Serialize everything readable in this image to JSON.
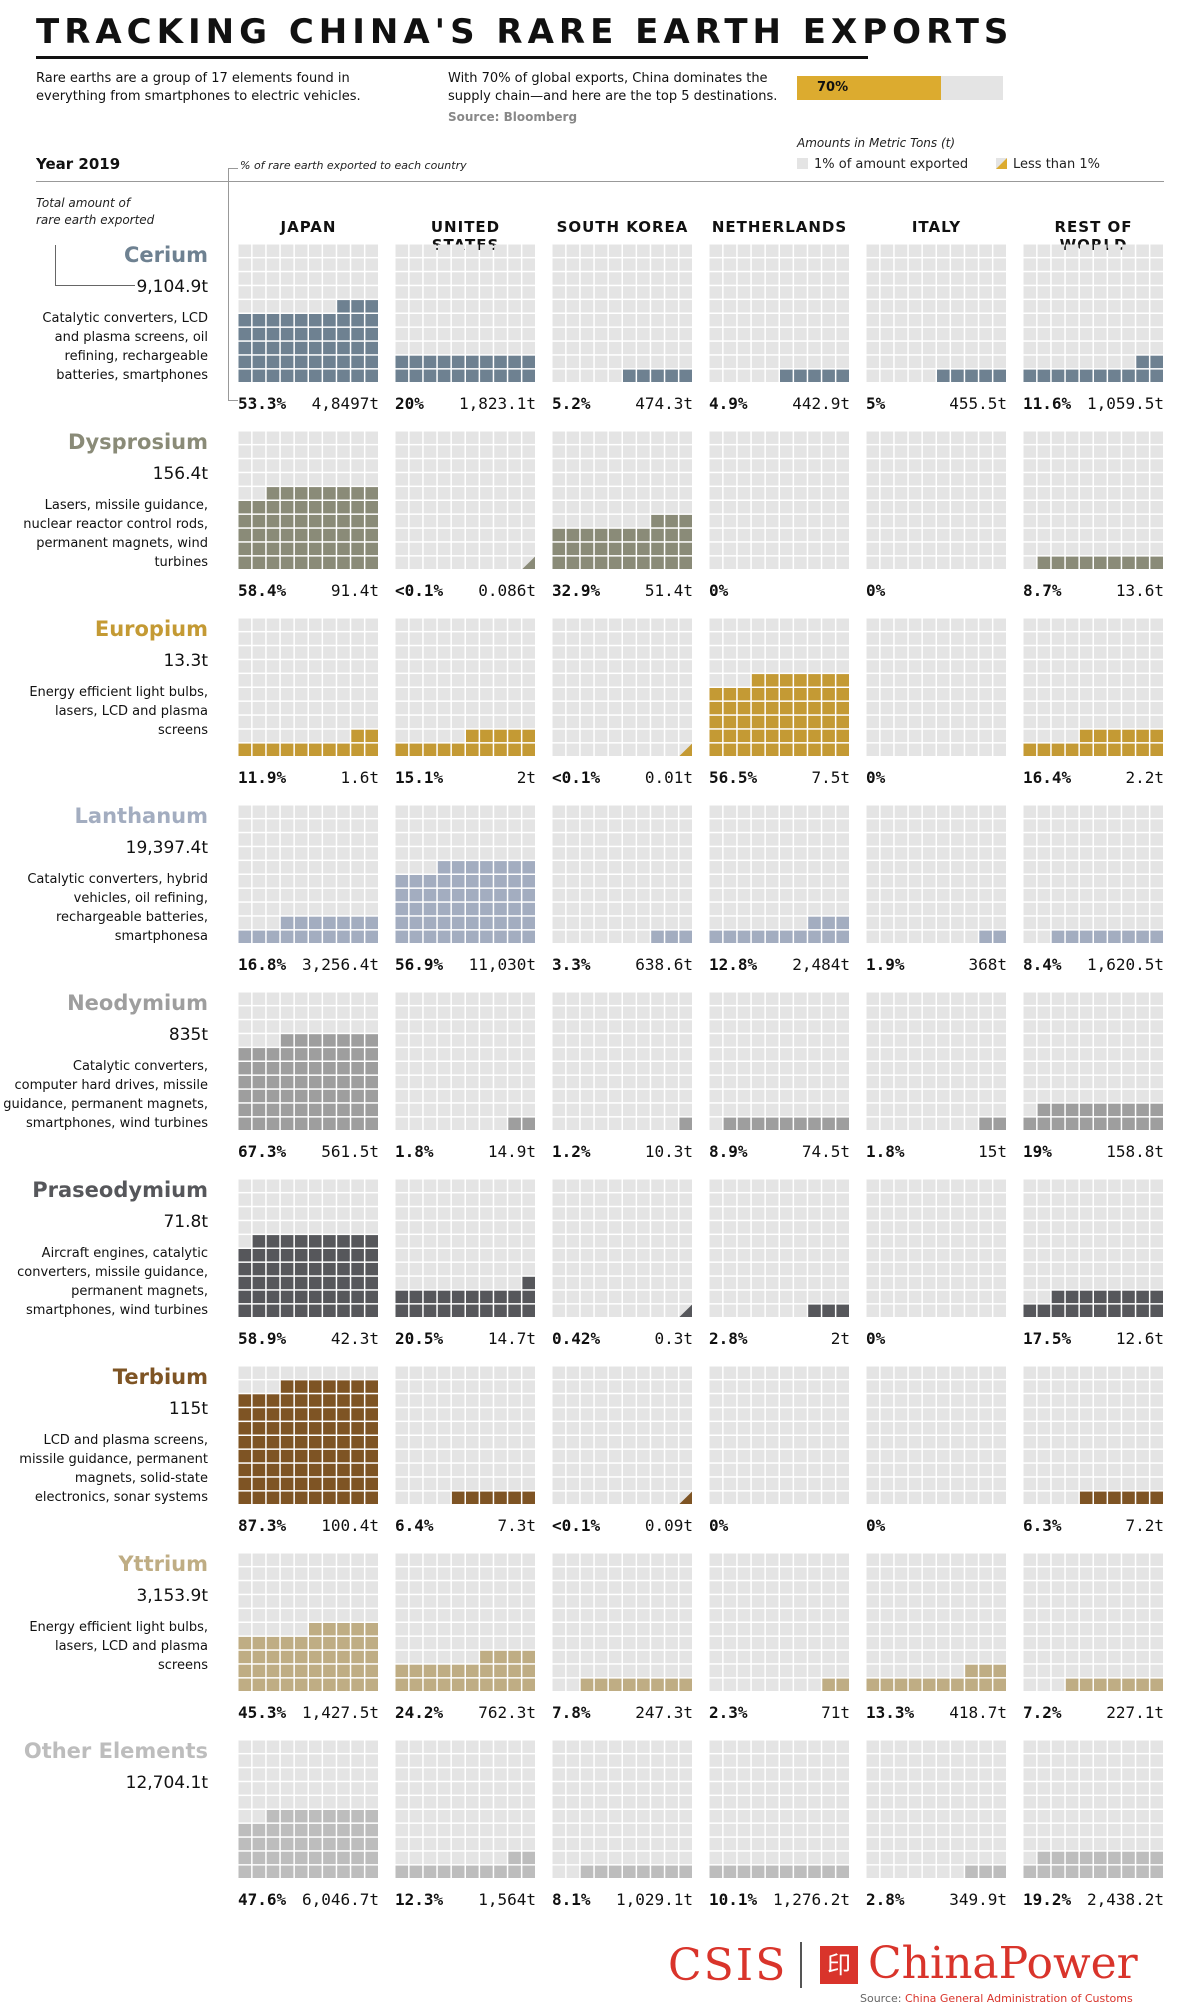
{
  "title": "TRACKING CHINA'S RARE EARTH EXPORTS",
  "intro_left": "Rare earths are a group of 17 elements found in everything from smartphones to electric vehicles.",
  "intro_right": "With 70% of global exports, China dominates the supply chain—and here are the top 5 destinations.",
  "source_top": "Source: Bloomberg",
  "china_share": {
    "label": "70%",
    "fraction": 0.7
  },
  "legend": {
    "title": "Amounts in Metric Tons (t)",
    "cell_label": "1% of amount exported",
    "less_label": "Less than 1%"
  },
  "year_label": "Year 2019",
  "pct_note": "% of rare earth exported to each country",
  "total_note": "Total amount of rare earth exported",
  "colors": {
    "empty": "#e4e4e4",
    "legend_cell": "#e4e4e4",
    "legend_less": "#dcab2f"
  },
  "footer": {
    "logo_left": "CSIS",
    "logo_right": "ChinaPower",
    "logo_mark": "印",
    "source_prefix": "Source: ",
    "source_name": "China General Administration of Customs"
  },
  "chart_data": {
    "type": "waffle",
    "units_per_cell": "1% of element's exports",
    "grid": {
      "rows": 10,
      "cols": 10
    },
    "categories": [
      "JAPAN",
      "UNITED STATES",
      "SOUTH KOREA",
      "NETHERLANDS",
      "ITALY",
      "REST OF WORLD"
    ],
    "series": [
      {
        "name": "Cerium",
        "total": "9,104.9t",
        "color": "#6e8191",
        "uses": [
          "Catalytic converters, LCD",
          "and plasma screens, oil",
          "refining, rechargeable",
          "batteries, smartphones"
        ],
        "values": [
          53.3,
          20,
          5.2,
          4.9,
          5,
          11.6
        ],
        "pct_labels": [
          "53.3%",
          "20%",
          "5.2%",
          "4.9%",
          "5%",
          "11.6%"
        ],
        "ton_labels": [
          "4,8497t",
          "1,823.1t",
          "474.3t",
          "442.9t",
          "455.5t",
          "1,059.5t"
        ]
      },
      {
        "name": "Dysprosium",
        "total": "156.4t",
        "color": "#8a8b78",
        "uses": [
          "Lasers, missile guidance,",
          "nuclear reactor control rods,",
          "permanent magnets, wind",
          "turbines"
        ],
        "values": [
          58.4,
          0.05,
          32.9,
          0,
          0,
          8.7
        ],
        "pct_labels": [
          "58.4%",
          "<0.1%",
          "32.9%",
          "0%",
          "0%",
          "8.7%"
        ],
        "ton_labels": [
          "91.4t",
          "0.086t",
          "51.4t",
          "",
          "",
          "13.6t"
        ]
      },
      {
        "name": "Europium",
        "total": "13.3t",
        "color": "#c49a34",
        "uses": [
          "Energy efficient light bulbs,",
          "lasers, LCD and plasma",
          "screens"
        ],
        "values": [
          11.9,
          15.1,
          0.05,
          56.5,
          0,
          16.4
        ],
        "pct_labels": [
          "11.9%",
          "15.1%",
          "<0.1%",
          "56.5%",
          "0%",
          "16.4%"
        ],
        "ton_labels": [
          "1.6t",
          "2t",
          "0.01t",
          "7.5t",
          "",
          "2.2t"
        ]
      },
      {
        "name": "Lanthanum",
        "total": "19,397.4t",
        "color": "#a3adc0",
        "uses": [
          "Catalytic converters, hybrid",
          "vehicles, oil refining,",
          "rechargeable batteries,",
          "smartphonesa"
        ],
        "values": [
          16.8,
          56.9,
          3.3,
          12.8,
          1.9,
          8.4
        ],
        "pct_labels": [
          "16.8%",
          "56.9%",
          "3.3%",
          "12.8%",
          "1.9%",
          "8.4%"
        ],
        "ton_labels": [
          "3,256.4t",
          "11,030t",
          "638.6t",
          "2,484t",
          "368t",
          "1,620.5t"
        ]
      },
      {
        "name": "Neodymium",
        "total": "835t",
        "color": "#9e9e9e",
        "uses": [
          "Catalytic converters,",
          "computer hard drives, missile",
          "guidance, permanent magnets,",
          "smartphones, wind turbines"
        ],
        "values": [
          67.3,
          1.8,
          1.2,
          8.9,
          1.8,
          19
        ],
        "pct_labels": [
          "67.3%",
          "1.8%",
          "1.2%",
          "8.9%",
          "1.8%",
          "19%"
        ],
        "ton_labels": [
          "561.5t",
          "14.9t",
          "10.3t",
          "74.5t",
          "15t",
          "158.8t"
        ]
      },
      {
        "name": "Praseodymium",
        "total": "71.8t",
        "color": "#56575b",
        "uses": [
          "Aircraft engines, catalytic",
          "converters, missile guidance,",
          "permanent magnets,",
          "smartphones, wind turbines"
        ],
        "values": [
          58.9,
          20.5,
          0.42,
          2.8,
          0,
          17.5
        ],
        "pct_labels": [
          "58.9%",
          "20.5%",
          "0.42%",
          "2.8%",
          "0%",
          "17.5%"
        ],
        "ton_labels": [
          "42.3t",
          "14.7t",
          "0.3t",
          "2t",
          "",
          "12.6t"
        ]
      },
      {
        "name": "Terbium",
        "total": "115t",
        "color": "#7e5424",
        "uses": [
          "LCD and plasma screens,",
          "missile guidance, permanent",
          "magnets, solid-state",
          "electronics, sonar systems"
        ],
        "values": [
          87.3,
          6.4,
          0.05,
          0,
          0,
          6.3
        ],
        "pct_labels": [
          "87.3%",
          "6.4%",
          "<0.1%",
          "0%",
          "0%",
          "6.3%"
        ],
        "ton_labels": [
          "100.4t",
          "7.3t",
          "0.09t",
          "",
          "",
          "7.2t"
        ]
      },
      {
        "name": "Yttrium",
        "total": "3,153.9t",
        "color": "#bfad84",
        "uses": [
          "Energy efficient light bulbs,",
          "lasers, LCD and plasma",
          "screens"
        ],
        "values": [
          45.3,
          24.2,
          7.8,
          2.3,
          13.3,
          7.2
        ],
        "pct_labels": [
          "45.3%",
          "24.2%",
          "7.8%",
          "2.3%",
          "13.3%",
          "7.2%"
        ],
        "ton_labels": [
          "1,427.5t",
          "762.3t",
          "247.3t",
          "71t",
          "418.7t",
          "227.1t"
        ]
      },
      {
        "name": "Other Elements",
        "total": "12,704.1t",
        "color": "#bdbdbd",
        "uses": [],
        "values": [
          47.6,
          12.3,
          8.1,
          10.1,
          2.8,
          19.2
        ],
        "pct_labels": [
          "47.6%",
          "12.3%",
          "8.1%",
          "10.1%",
          "2.8%",
          "19.2%"
        ],
        "ton_labels": [
          "6,046.7t",
          "1,564t",
          "1,029.1t",
          "1,276.2t",
          "349.9t",
          "2,438.2t"
        ]
      }
    ]
  }
}
